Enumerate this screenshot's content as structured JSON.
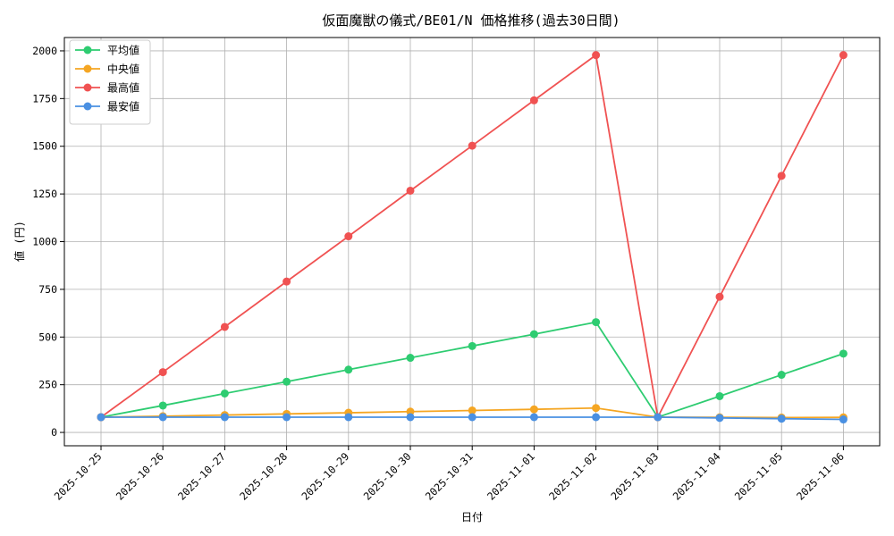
{
  "chart_data": {
    "type": "line",
    "title": "仮面魔獣の儀式/BE01/N 価格推移(過去30日間)",
    "xlabel": "日付",
    "ylabel": "値 (円)",
    "categories": [
      "2025-10-25",
      "2025-10-26",
      "2025-10-27",
      "2025-10-28",
      "2025-10-29",
      "2025-10-30",
      "2025-10-31",
      "2025-11-01",
      "2025-11-02",
      "2025-11-03",
      "2025-11-04",
      "2025-11-05",
      "2025-11-06"
    ],
    "ylim": [
      -70,
      2070
    ],
    "yticks": [
      0,
      250,
      500,
      750,
      1000,
      1250,
      1500,
      1750,
      2000
    ],
    "grid": true,
    "legend_position": "top-left",
    "series": [
      {
        "name": "平均値",
        "color": "#2ecc71",
        "values": [
          80,
          141,
          204,
          266,
          329,
          391,
          453,
          515,
          578,
          80,
          190,
          302,
          413
        ]
      },
      {
        "name": "中央値",
        "color": "#f5a623",
        "values": [
          80,
          85,
          91,
          97,
          103,
          109,
          115,
          121,
          128,
          80,
          79,
          78,
          79
        ]
      },
      {
        "name": "最高値",
        "color": "#f05252",
        "values": [
          80,
          316,
          553,
          791,
          1028,
          1267,
          1503,
          1741,
          1978,
          80,
          711,
          1345,
          1978
        ]
      },
      {
        "name": "最安値",
        "color": "#4a90e2",
        "values": [
          80,
          80,
          80,
          80,
          80,
          80,
          80,
          80,
          80,
          80,
          76,
          72,
          68
        ]
      }
    ]
  }
}
